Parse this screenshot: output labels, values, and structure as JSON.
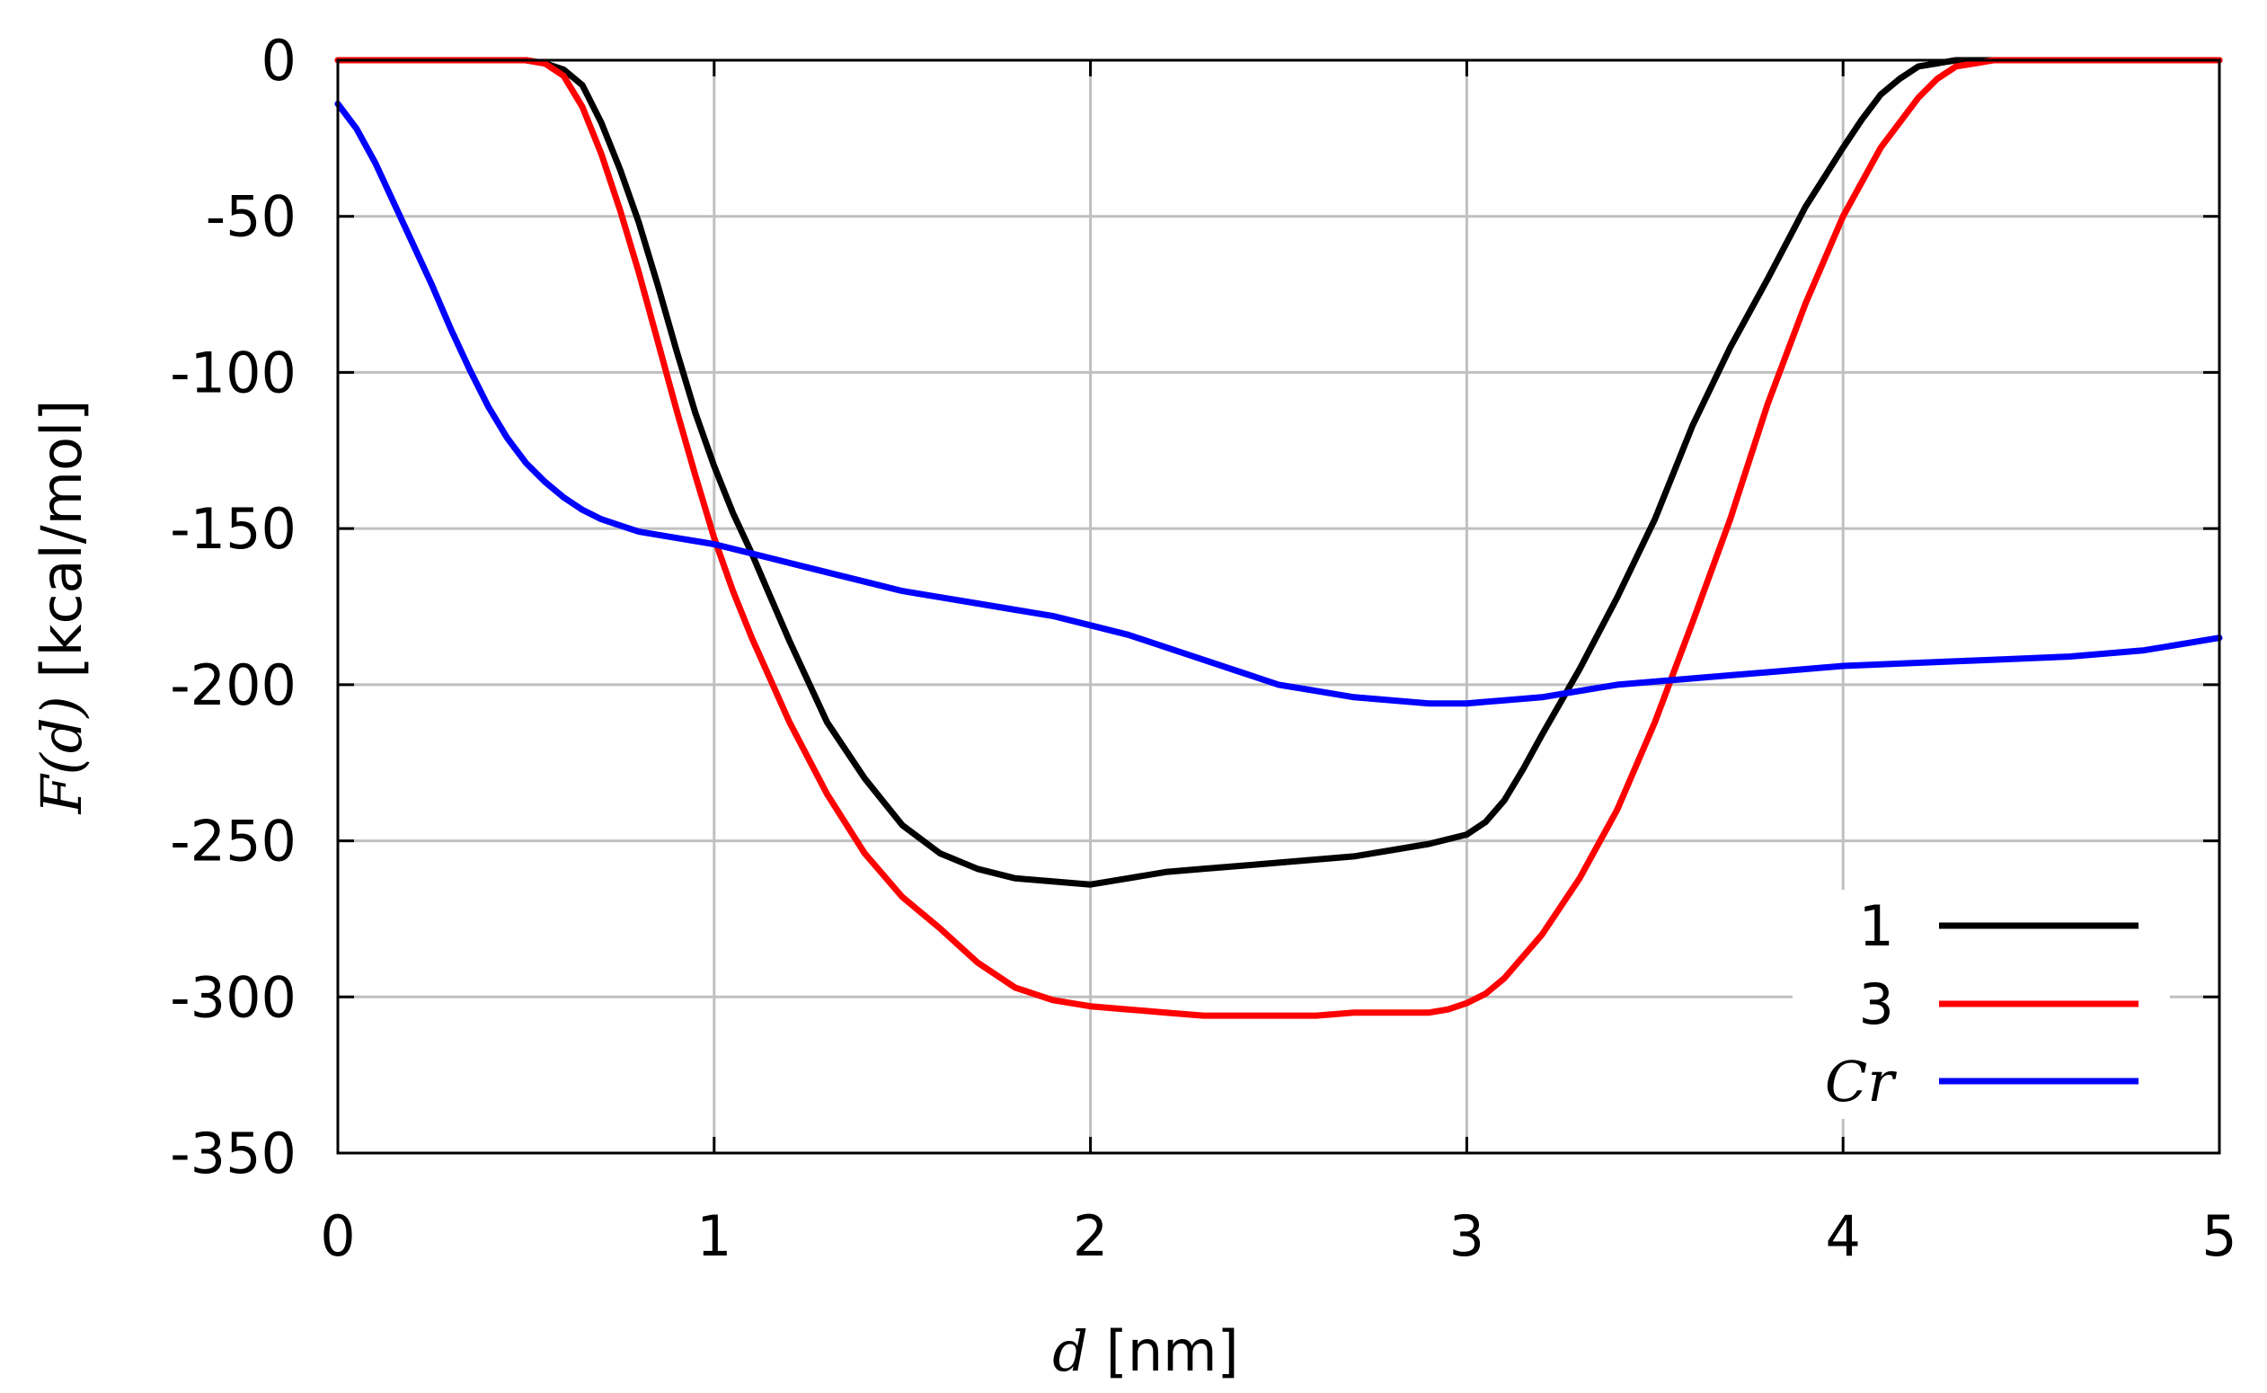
{
  "chart_data": {
    "type": "line",
    "title": "",
    "xlabel_var": "d",
    "xlabel_unit": " [nm]",
    "ylabel_func": "F(d)",
    "ylabel_unit": " [kcal/mol]",
    "xlim": [
      0,
      5
    ],
    "ylim": [
      -350,
      0
    ],
    "xticks": [
      0,
      1,
      2,
      3,
      4,
      5
    ],
    "yticks": [
      0,
      -50,
      -100,
      -150,
      -200,
      -250,
      -300,
      -350
    ],
    "grid": true,
    "legend_position": "bottom-right",
    "series": [
      {
        "name": "1",
        "name_style": "normal",
        "color": "#000000",
        "x": [
          0,
          0.4,
          0.5,
          0.55,
          0.6,
          0.65,
          0.7,
          0.75,
          0.8,
          0.85,
          0.9,
          0.95,
          1.0,
          1.05,
          1.1,
          1.15,
          1.2,
          1.3,
          1.4,
          1.5,
          1.6,
          1.7,
          1.8,
          1.9,
          2.0,
          2.1,
          2.2,
          2.3,
          2.4,
          2.5,
          2.6,
          2.7,
          2.8,
          2.9,
          3.0,
          3.05,
          3.1,
          3.15,
          3.2,
          3.3,
          3.4,
          3.5,
          3.6,
          3.7,
          3.8,
          3.9,
          4.0,
          4.05,
          4.1,
          4.15,
          4.2,
          4.25,
          4.3,
          4.4,
          4.5,
          5.0
        ],
        "y": [
          0,
          0,
          0,
          -1,
          -3,
          -8,
          -20,
          -35,
          -52,
          -72,
          -93,
          -113,
          -130,
          -145,
          -158,
          -172,
          -186,
          -212,
          -230,
          -245,
          -254,
          -259,
          -262,
          -263,
          -264,
          -262,
          -260,
          -259,
          -258,
          -257,
          -256,
          -255,
          -253,
          -251,
          -248,
          -244,
          -237,
          -227,
          -216,
          -195,
          -172,
          -147,
          -117,
          -92,
          -70,
          -47,
          -28,
          -19,
          -11,
          -6,
          -2,
          -1,
          0,
          0,
          0,
          0
        ]
      },
      {
        "name": "3",
        "name_style": "normal",
        "color": "#ff0000",
        "x": [
          0,
          0.45,
          0.5,
          0.55,
          0.6,
          0.65,
          0.7,
          0.75,
          0.8,
          0.85,
          0.9,
          0.95,
          1.0,
          1.05,
          1.1,
          1.2,
          1.3,
          1.4,
          1.5,
          1.6,
          1.7,
          1.8,
          1.9,
          2.0,
          2.1,
          2.2,
          2.3,
          2.4,
          2.5,
          2.6,
          2.7,
          2.8,
          2.9,
          2.95,
          3.0,
          3.05,
          3.1,
          3.2,
          3.3,
          3.4,
          3.5,
          3.6,
          3.7,
          3.8,
          3.9,
          4.0,
          4.1,
          4.2,
          4.25,
          4.3,
          4.35,
          4.4,
          4.5,
          5.0
        ],
        "y": [
          0,
          0,
          0,
          -1,
          -5,
          -15,
          -30,
          -48,
          -68,
          -90,
          -112,
          -133,
          -153,
          -170,
          -185,
          -212,
          -235,
          -254,
          -268,
          -278,
          -289,
          -297,
          -301,
          -303,
          -304,
          -305,
          -306,
          -306,
          -306,
          -306,
          -305,
          -305,
          -305,
          -304,
          -302,
          -299,
          -294,
          -280,
          -262,
          -240,
          -212,
          -180,
          -147,
          -110,
          -78,
          -50,
          -28,
          -12,
          -6,
          -2,
          -1,
          0,
          0,
          0
        ]
      },
      {
        "name": "Cr",
        "name_style": "italic",
        "color": "#0000ff",
        "x": [
          0,
          0.05,
          0.1,
          0.15,
          0.2,
          0.25,
          0.3,
          0.35,
          0.4,
          0.45,
          0.5,
          0.55,
          0.6,
          0.65,
          0.7,
          0.75,
          0.8,
          0.9,
          1.0,
          1.1,
          1.2,
          1.3,
          1.4,
          1.5,
          1.6,
          1.7,
          1.8,
          1.9,
          2.0,
          2.1,
          2.2,
          2.3,
          2.4,
          2.5,
          2.6,
          2.7,
          2.8,
          2.9,
          3.0,
          3.1,
          3.2,
          3.3,
          3.4,
          3.5,
          3.6,
          3.7,
          3.8,
          3.9,
          4.0,
          4.2,
          4.4,
          4.6,
          4.8,
          5.0
        ],
        "y": [
          -14,
          -22,
          -33,
          -46,
          -59,
          -72,
          -86,
          -99,
          -111,
          -121,
          -129,
          -135,
          -140,
          -144,
          -147,
          -149,
          -151,
          -153,
          -155,
          -158,
          -161,
          -164,
          -167,
          -170,
          -172,
          -174,
          -176,
          -178,
          -181,
          -184,
          -188,
          -192,
          -196,
          -200,
          -202,
          -204,
          -205,
          -206,
          -206,
          -205,
          -204,
          -202,
          -200,
          -199,
          -198,
          -197,
          -196,
          -195,
          -194,
          -193,
          -192,
          -191,
          -189,
          -185
        ]
      }
    ]
  }
}
